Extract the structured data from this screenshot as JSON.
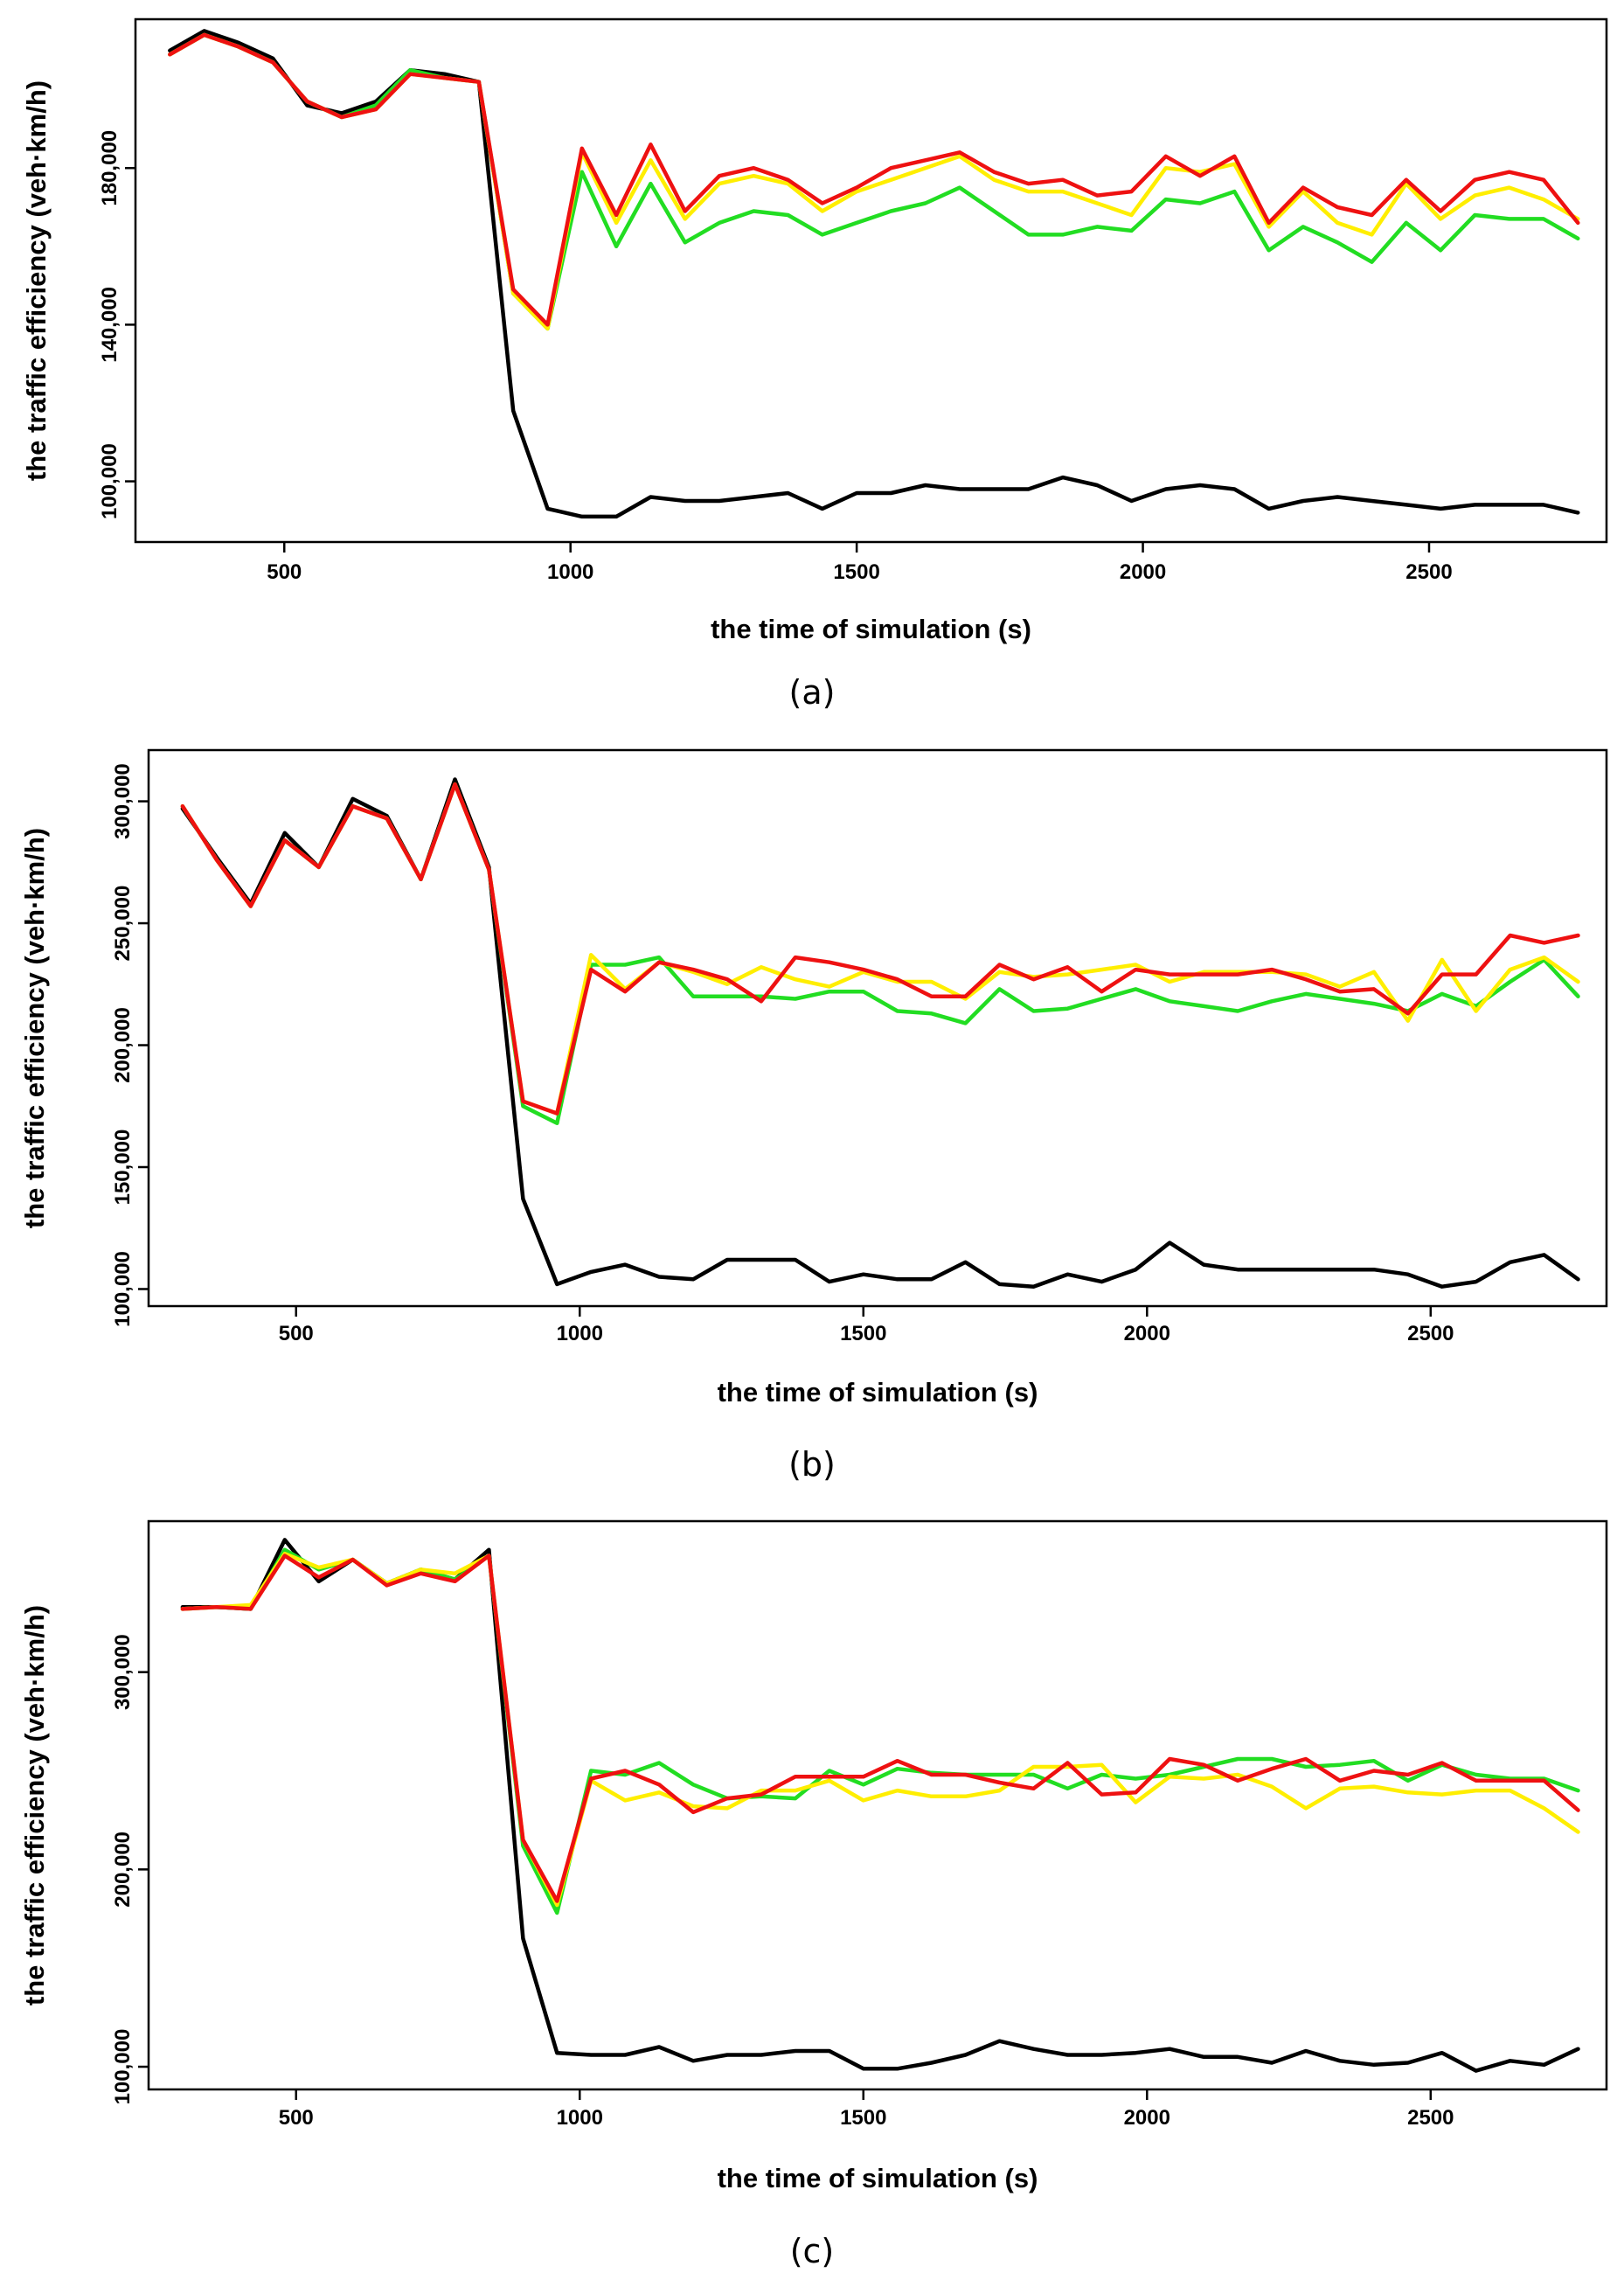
{
  "chart_data": [
    {
      "type": "line",
      "caption": "(a)",
      "xlabel": "the time of simulation (s)",
      "ylabel": "the traffic efficiency (veh·km/h)",
      "xlim": [
        240,
        2810
      ],
      "ylim": [
        84500,
        218000
      ],
      "xticks": [
        500,
        1000,
        1500,
        2000,
        2500
      ],
      "xtick_labels": [
        "500",
        "1000",
        "1500",
        "2000",
        "2500"
      ],
      "yticks": [
        100000,
        140000,
        180000
      ],
      "ytick_labels": [
        "100,000",
        "140,000",
        "180,000"
      ],
      "x": [
        300,
        360,
        420,
        480,
        540,
        600,
        660,
        720,
        780,
        840,
        900,
        960,
        1020,
        1080,
        1140,
        1200,
        1260,
        1320,
        1380,
        1440,
        1500,
        1560,
        1620,
        1680,
        1740,
        1800,
        1860,
        1920,
        1980,
        2040,
        2100,
        2160,
        2220,
        2280,
        2340,
        2400,
        2460,
        2520,
        2580,
        2640,
        2700,
        2760
      ],
      "series": [
        {
          "name": "black",
          "color": "#000000",
          "values": [
            210000,
            215000,
            212000,
            208000,
            196000,
            194000,
            197000,
            205000,
            204000,
            202000,
            118000,
            93000,
            91000,
            91000,
            96000,
            95000,
            95000,
            96000,
            97000,
            93000,
            97000,
            97000,
            99000,
            98000,
            98000,
            98000,
            101000,
            99000,
            95000,
            98000,
            99000,
            98000,
            93000,
            95000,
            96000,
            95000,
            94000,
            93000,
            94000,
            94000,
            94000,
            92000
          ]
        },
        {
          "name": "green",
          "color": "#22dd22",
          "values": [
            209000,
            214000,
            211000,
            207000,
            197000,
            193000,
            196000,
            205000,
            203000,
            202000,
            148000,
            139000,
            179000,
            160000,
            176000,
            161000,
            166000,
            169000,
            168000,
            163000,
            166000,
            169000,
            171000,
            175000,
            169000,
            163000,
            163000,
            165000,
            164000,
            172000,
            171000,
            174000,
            159000,
            165000,
            161000,
            156000,
            166000,
            159000,
            168000,
            167000,
            167000,
            162000
          ]
        },
        {
          "name": "yellow",
          "color": "#ffee00",
          "values": [
            209000,
            214000,
            211000,
            207000,
            197000,
            193000,
            195000,
            204000,
            203000,
            202000,
            148000,
            139000,
            184000,
            166000,
            182000,
            167000,
            176000,
            178000,
            176000,
            169000,
            174000,
            177000,
            180000,
            183000,
            177000,
            174000,
            174000,
            171000,
            168000,
            180000,
            179000,
            181000,
            165000,
            174000,
            166000,
            163000,
            176000,
            167000,
            173000,
            175000,
            172000,
            167000
          ]
        },
        {
          "name": "red",
          "color": "#ee1111",
          "values": [
            209000,
            214000,
            211000,
            207000,
            197000,
            193000,
            195000,
            204000,
            203000,
            202000,
            149000,
            140000,
            185000,
            168000,
            186000,
            169000,
            178000,
            180000,
            177000,
            171000,
            175000,
            180000,
            182000,
            184000,
            179000,
            176000,
            177000,
            173000,
            174000,
            183000,
            178000,
            183000,
            166000,
            175000,
            170000,
            168000,
            177000,
            169000,
            177000,
            179000,
            177000,
            166000
          ]
        }
      ]
    },
    {
      "type": "line",
      "caption": "(b)",
      "xlabel": "the time of simulation (s)",
      "ylabel": "the traffic efficiency (veh·km/h)",
      "xlim": [
        240,
        2810
      ],
      "ylim": [
        93000,
        321000
      ],
      "xticks": [
        500,
        1000,
        1500,
        2000,
        2500
      ],
      "xtick_labels": [
        "500",
        "1000",
        "1500",
        "2000",
        "2500"
      ],
      "yticks": [
        100000,
        150000,
        200000,
        250000,
        300000
      ],
      "ytick_labels": [
        "100,000",
        "150,000",
        "200,000",
        "250,000",
        "300,000"
      ],
      "x": [
        300,
        360,
        420,
        480,
        540,
        600,
        660,
        720,
        780,
        840,
        900,
        960,
        1020,
        1080,
        1140,
        1200,
        1260,
        1320,
        1380,
        1440,
        1500,
        1560,
        1620,
        1680,
        1740,
        1800,
        1860,
        1920,
        1980,
        2040,
        2100,
        2160,
        2220,
        2280,
        2340,
        2400,
        2460,
        2520,
        2580,
        2640,
        2700,
        2760
      ],
      "series": [
        {
          "name": "black",
          "color": "#000000",
          "values": [
            297000,
            277000,
            258000,
            287000,
            273000,
            301000,
            294000,
            268000,
            309000,
            273000,
            137000,
            102000,
            107000,
            110000,
            105000,
            104000,
            112000,
            112000,
            112000,
            103000,
            106000,
            104000,
            104000,
            111000,
            102000,
            101000,
            106000,
            103000,
            108000,
            119000,
            110000,
            108000,
            108000,
            108000,
            108000,
            108000,
            106000,
            101000,
            103000,
            111000,
            114000,
            104000
          ]
        },
        {
          "name": "green",
          "color": "#22dd22",
          "values": [
            298000,
            276000,
            257000,
            284000,
            273000,
            298000,
            293000,
            268000,
            307000,
            272000,
            175000,
            168000,
            233000,
            233000,
            236000,
            220000,
            220000,
            220000,
            219000,
            222000,
            222000,
            214000,
            213000,
            209000,
            223000,
            214000,
            215000,
            219000,
            223000,
            218000,
            216000,
            214000,
            218000,
            221000,
            219000,
            217000,
            214000,
            221000,
            216000,
            226000,
            235000,
            220000
          ]
        },
        {
          "name": "yellow",
          "color": "#ffee00",
          "values": [
            298000,
            276000,
            257000,
            284000,
            273000,
            298000,
            293000,
            268000,
            307000,
            272000,
            177000,
            172000,
            237000,
            223000,
            234000,
            230000,
            225000,
            232000,
            227000,
            224000,
            230000,
            226000,
            226000,
            219000,
            230000,
            228000,
            229000,
            231000,
            233000,
            226000,
            230000,
            230000,
            230000,
            229000,
            224000,
            230000,
            210000,
            235000,
            214000,
            231000,
            236000,
            226000
          ]
        },
        {
          "name": "red",
          "color": "#ee1111",
          "values": [
            298000,
            276000,
            257000,
            284000,
            273000,
            298000,
            293000,
            268000,
            307000,
            272000,
            177000,
            172000,
            231000,
            222000,
            234000,
            231000,
            227000,
            218000,
            236000,
            234000,
            231000,
            227000,
            220000,
            220000,
            233000,
            227000,
            232000,
            222000,
            231000,
            229000,
            229000,
            229000,
            231000,
            227000,
            222000,
            223000,
            213000,
            229000,
            229000,
            245000,
            242000,
            245000
          ]
        }
      ]
    },
    {
      "type": "line",
      "caption": "(c)",
      "xlabel": "the time of simulation (s)",
      "ylabel": "the traffic efficiency (veh·km/h)",
      "xlim": [
        240,
        2810
      ],
      "ylim": [
        88500,
        376500
      ],
      "xticks": [
        500,
        1000,
        1500,
        2000,
        2500
      ],
      "xtick_labels": [
        "500",
        "1000",
        "1500",
        "2000",
        "2500"
      ],
      "yticks": [
        100000,
        200000,
        300000
      ],
      "ytick_labels": [
        "100,000",
        "200,000",
        "300,000"
      ],
      "x": [
        300,
        360,
        420,
        480,
        540,
        600,
        660,
        720,
        780,
        840,
        900,
        960,
        1020,
        1080,
        1140,
        1200,
        1260,
        1320,
        1380,
        1440,
        1500,
        1560,
        1620,
        1680,
        1740,
        1800,
        1860,
        1920,
        1980,
        2040,
        2100,
        2160,
        2220,
        2280,
        2340,
        2400,
        2460,
        2520,
        2580,
        2640,
        2700,
        2760
      ],
      "series": [
        {
          "name": "black",
          "color": "#000000",
          "values": [
            333000,
            333000,
            332000,
            367000,
            346000,
            357000,
            345000,
            352000,
            347000,
            362000,
            165000,
            107000,
            106000,
            106000,
            110000,
            103000,
            106000,
            106000,
            108000,
            108000,
            99000,
            99000,
            102000,
            106000,
            113000,
            109000,
            106000,
            106000,
            107000,
            109000,
            105000,
            105000,
            102000,
            108000,
            103000,
            101000,
            102000,
            107000,
            98000,
            103000,
            101000,
            109000
          ]
        },
        {
          "name": "green",
          "color": "#22dd22",
          "values": [
            332000,
            333000,
            332000,
            362000,
            352000,
            357000,
            345000,
            352000,
            347000,
            359000,
            212000,
            178000,
            250000,
            248000,
            254000,
            243000,
            236000,
            237000,
            236000,
            250000,
            243000,
            251000,
            249000,
            248000,
            248000,
            248000,
            241000,
            248000,
            246000,
            248000,
            252000,
            256000,
            256000,
            252000,
            253000,
            255000,
            245000,
            253000,
            248000,
            246000,
            246000,
            240000
          ]
        },
        {
          "name": "yellow",
          "color": "#ffee00",
          "values": [
            332000,
            333000,
            334000,
            360000,
            353000,
            357000,
            345000,
            352000,
            350000,
            359000,
            215000,
            182000,
            245000,
            235000,
            239000,
            232000,
            231000,
            240000,
            240000,
            245000,
            235000,
            240000,
            237000,
            237000,
            240000,
            252000,
            252000,
            253000,
            234000,
            247000,
            246000,
            248000,
            242000,
            231000,
            241000,
            242000,
            239000,
            238000,
            240000,
            240000,
            231000,
            219000
          ]
        },
        {
          "name": "red",
          "color": "#ee1111",
          "values": [
            332000,
            333000,
            332000,
            359000,
            348000,
            357000,
            344000,
            350000,
            346000,
            359000,
            215000,
            184000,
            246000,
            250000,
            243000,
            229000,
            236000,
            238000,
            247000,
            247000,
            247000,
            255000,
            248000,
            248000,
            244000,
            241000,
            254000,
            238000,
            239000,
            256000,
            253000,
            245000,
            251000,
            256000,
            245000,
            250000,
            248000,
            254000,
            245000,
            245000,
            245000,
            230000
          ]
        }
      ]
    }
  ]
}
